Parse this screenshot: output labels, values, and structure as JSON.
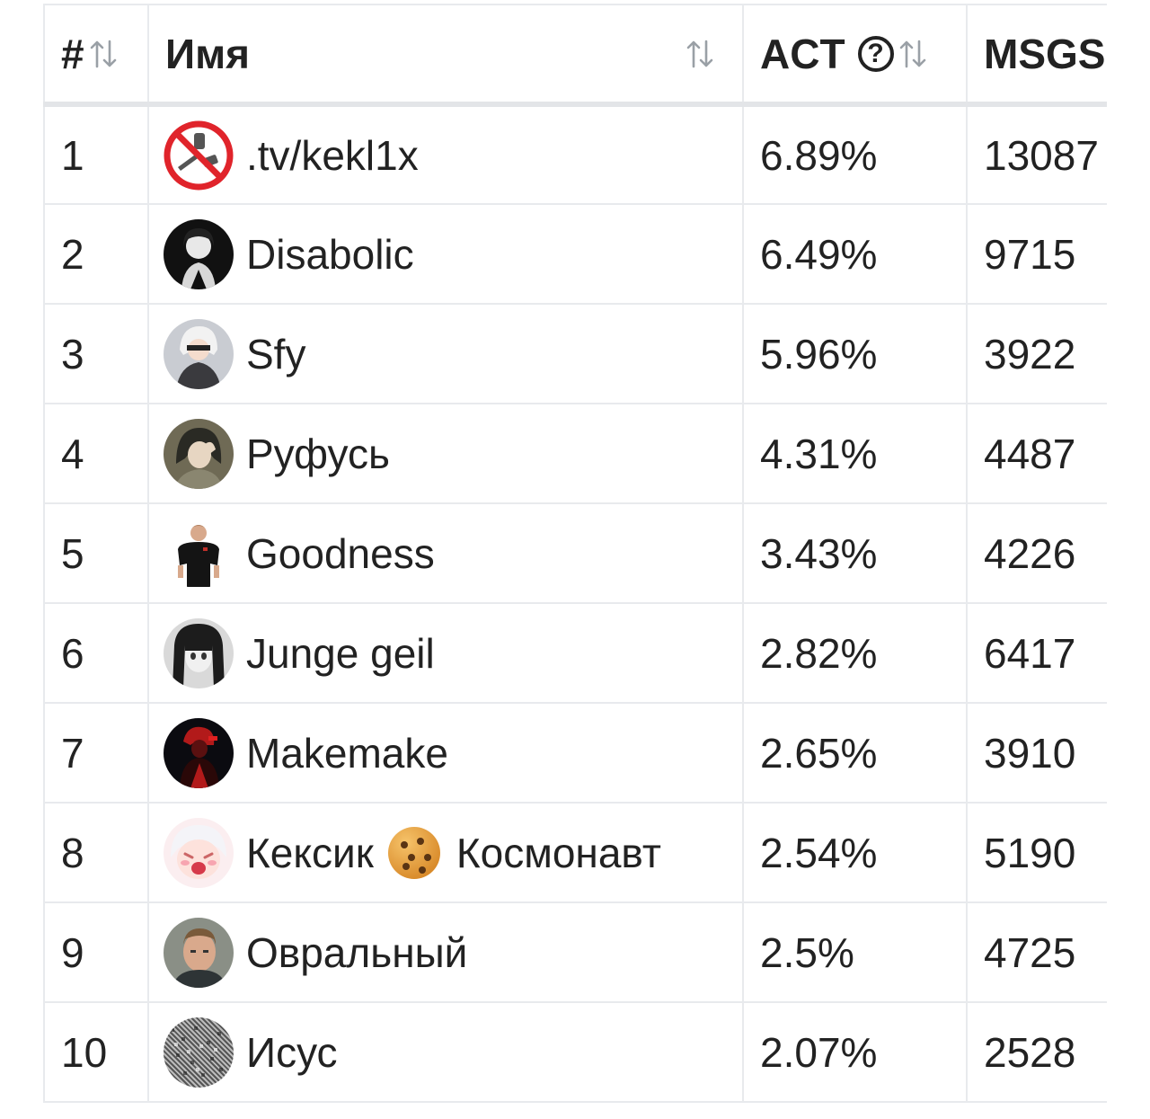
{
  "table": {
    "headers": {
      "rank": "#",
      "name": "Имя",
      "act": "ACT",
      "act_help": "?",
      "msgs": "MSGS"
    },
    "rows": [
      {
        "rank": "1",
        "name": ".tv/kekl1x",
        "act": "6.89%",
        "msgs": "13087",
        "avatar": "no-drugs-icon"
      },
      {
        "rank": "2",
        "name": "Disabolic",
        "act": "6.49%",
        "msgs": "9715",
        "avatar": "anime-girl-bw"
      },
      {
        "rank": "3",
        "name": "Sfy",
        "act": "5.96%",
        "msgs": "3922",
        "avatar": "anime-2b"
      },
      {
        "rank": "4",
        "name": "Руфусь",
        "act": "4.31%",
        "msgs": "4487",
        "avatar": "anime-dark-hair"
      },
      {
        "rank": "5",
        "name": "Goodness",
        "act": "3.43%",
        "msgs": "4226",
        "avatar": "man-black-shirt"
      },
      {
        "rank": "6",
        "name": "Junge geil",
        "act": "2.82%",
        "msgs": "6417",
        "avatar": "anime-girl-gray"
      },
      {
        "rank": "7",
        "name": "Makemake",
        "act": "2.65%",
        "msgs": "3910",
        "avatar": "red-dark-figure"
      },
      {
        "rank": "8",
        "name_before": "Кексик",
        "name_emoji": "cookie-emoji",
        "name_after": "Космонавт",
        "act": "2.54%",
        "msgs": "5190",
        "avatar": "anime-crying-girl"
      },
      {
        "rank": "9",
        "name": "Овральный",
        "act": "2.5%",
        "msgs": "4725",
        "avatar": "man-portrait"
      },
      {
        "rank": "10",
        "name": "Исус",
        "act": "2.07%",
        "msgs": "2528",
        "avatar": "noise-pattern"
      }
    ]
  },
  "colors": {
    "border": "#e8eaed",
    "text": "#222222",
    "sort_icon": "#9aa0a6"
  }
}
